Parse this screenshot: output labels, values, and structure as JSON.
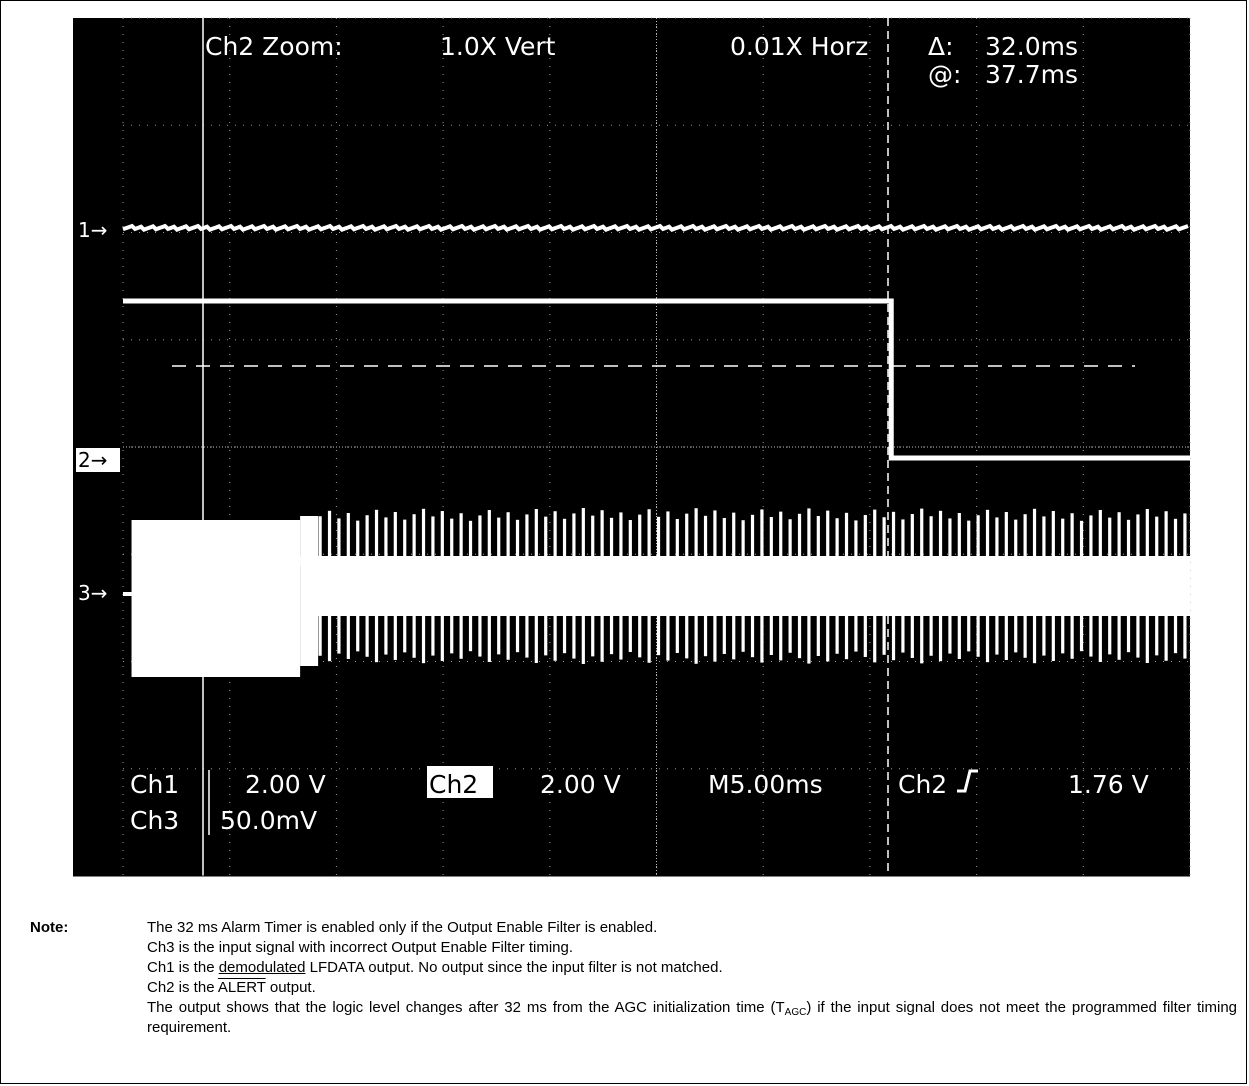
{
  "chart_data": {
    "type": "line",
    "title": "",
    "xlabel": "",
    "ylabel": "",
    "xlim": [
      -12.5,
      37.5
    ],
    "x_unit": "ms",
    "time_per_div": "M5.00ms",
    "cursor": {
      "delta": "32.0ms",
      "at": "37.7ms",
      "x": 19.5
    },
    "zoom": {
      "channel": "Ch2",
      "label": "Ch2 Zoom:",
      "vert": "1.0X Vert",
      "horz": "0.01X Horz"
    },
    "channel_settings": {
      "ch1": {
        "name": "Ch1",
        "scale": "2.00 V"
      },
      "ch2": {
        "name": "Ch2",
        "scale": "2.00 V"
      },
      "ch3": {
        "name": "Ch3",
        "scale": "50.0mV"
      },
      "trigger": {
        "source": "Ch2",
        "slope": "rising",
        "level": "1.76 V"
      }
    },
    "series": [
      {
        "name": "1",
        "color": "#ffffff",
        "description_level_div": 0,
        "x": [
          -12.5,
          37.5
        ],
        "y": [
          0,
          0
        ]
      },
      {
        "name": "2",
        "color": "#ffffff",
        "x": [
          -12.5,
          23.5,
          23.5,
          37.5
        ],
        "y": [
          7.4,
          7.4,
          0,
          0
        ],
        "trigger_level_div": 4.5
      },
      {
        "name": "3",
        "color": "#ffffff",
        "burst_start": -12.1,
        "first_segment_end": -4.2,
        "burst_amplitude_div": 2.3
      }
    ],
    "grid": true
  },
  "ui": {
    "delta_symbol": "Δ:",
    "at_symbol": "@:",
    "ch_markers": [
      "1→",
      "2→",
      "3→"
    ]
  },
  "note": {
    "head": "Note:",
    "lines": [
      "The 32 ms Alarm Timer is enabled only if the Output Enable Filter is enabled.",
      "Ch3 is the input signal with incorrect Output Enable Filter timing."
    ],
    "line3_pre": "Ch1 is the ",
    "line3_under": "demodulated",
    "line3_post": " LFDATA output. No output since the input filter is not matched.",
    "line4_pre": "Ch2 is the ",
    "line4_over": "ALERT",
    "line4_post": " output.",
    "line5_pre": "The output shows that the logic level changes after 32 ms from the AGC initialization time (T",
    "line5_sub": "AGC",
    "line5_post": ") if the input signal does not meet the programmed filter timing requirement."
  }
}
